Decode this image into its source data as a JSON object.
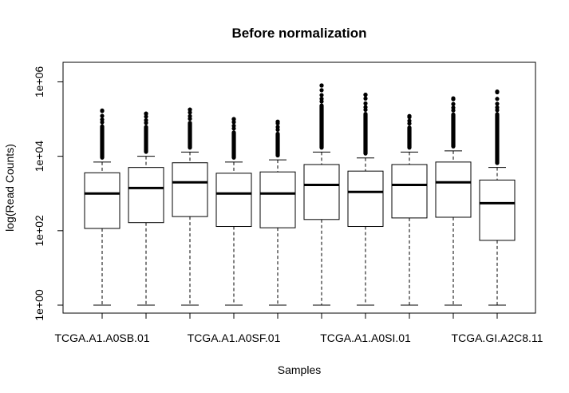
{
  "chart_data": {
    "type": "boxplot",
    "title": "Before normalization",
    "xlabel": "Samples",
    "ylabel": "log(Read Counts)",
    "y_scale": "log10",
    "ylim": [
      1,
      2000000
    ],
    "y_ticks": [
      {
        "value": 1,
        "label": "1e+00"
      },
      {
        "value": 100,
        "label": "1e+02"
      },
      {
        "value": 10000,
        "label": "1e+04"
      },
      {
        "value": 1000000,
        "label": "1e+06"
      }
    ],
    "x_tick_labels": [
      {
        "index": 0,
        "label": "TCGA.A1.A0SB.01"
      },
      {
        "index": 3,
        "label": "TCGA.A1.A0SF.01"
      },
      {
        "index": 6,
        "label": "TCGA.A1.A0SI.01"
      },
      {
        "index": 9,
        "label": "TCGA.GI.A2C8.11"
      }
    ],
    "boxes": [
      {
        "min": 1,
        "q1": 115,
        "median": 1000,
        "q3": 3600,
        "whisker_hi": 7000,
        "outlier_max": 170000
      },
      {
        "min": 1,
        "q1": 165,
        "median": 1400,
        "q3": 5000,
        "whisker_hi": 10000,
        "outlier_max": 140000
      },
      {
        "min": 1,
        "q1": 240,
        "median": 2000,
        "q3": 6700,
        "whisker_hi": 13000,
        "outlier_max": 180000
      },
      {
        "min": 1,
        "q1": 130,
        "median": 1000,
        "q3": 3500,
        "whisker_hi": 7000,
        "outlier_max": 100000
      },
      {
        "min": 1,
        "q1": 120,
        "median": 1000,
        "q3": 3800,
        "whisker_hi": 8000,
        "outlier_max": 85000
      },
      {
        "min": 1,
        "q1": 200,
        "median": 1700,
        "q3": 6000,
        "whisker_hi": 13000,
        "outlier_max": 800000
      },
      {
        "min": 1,
        "q1": 130,
        "median": 1100,
        "q3": 4000,
        "whisker_hi": 9000,
        "outlier_max": 450000
      },
      {
        "min": 1,
        "q1": 220,
        "median": 1700,
        "q3": 6000,
        "whisker_hi": 13000,
        "outlier_max": 120000
      },
      {
        "min": 1,
        "q1": 230,
        "median": 2000,
        "q3": 7000,
        "whisker_hi": 14000,
        "outlier_max": 360000
      },
      {
        "min": 1,
        "q1": 55,
        "median": 550,
        "q3": 2300,
        "whisker_hi": 5000,
        "outlier_max": 550000
      }
    ]
  }
}
